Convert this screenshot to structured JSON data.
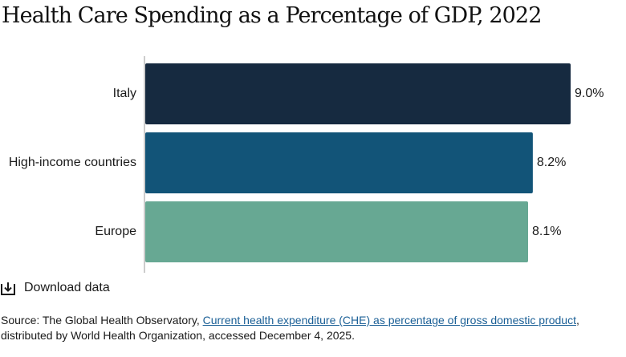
{
  "title": "Health Care Spending as a Percentage of GDP, 2022",
  "chart_data": {
    "type": "bar",
    "orientation": "horizontal",
    "title": "Health Care Spending as a Percentage of GDP, 2022",
    "categories": [
      "Italy",
      "High-income countries",
      "Europe"
    ],
    "values": [
      9.0,
      8.2,
      8.1
    ],
    "value_labels": [
      "9.0%",
      "8.2%",
      "8.1%"
    ],
    "colors": [
      "#162a40",
      "#125478",
      "#67a893"
    ],
    "xlim": [
      0,
      9.0
    ],
    "xlabel": "",
    "ylabel": "",
    "grid": false,
    "legend": "none"
  },
  "download": {
    "label": "Download data",
    "icon": "download-icon"
  },
  "source": {
    "prefix": "Source: The Global Health Observatory, ",
    "link_text": "Current health expenditure (CHE) as percentage of gross domestic product",
    "suffix": ", distributed by World Health Organization, accessed December 4, 2025."
  }
}
